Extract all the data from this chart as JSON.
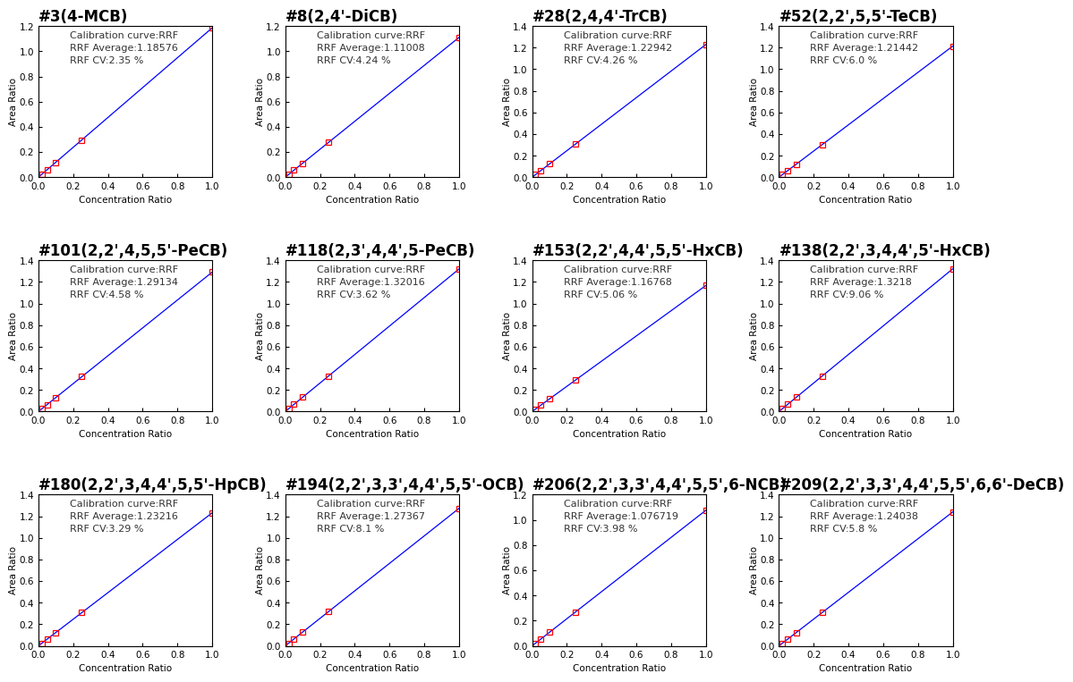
{
  "compounds": [
    {
      "title": "#3(4-MCB)",
      "rrf_avg": 1.18576,
      "rrf_cv": 2.35,
      "ylim": [
        0.0,
        1.2
      ],
      "yticks": [
        0.0,
        0.2,
        0.4,
        0.6,
        0.8,
        1.0,
        1.2
      ]
    },
    {
      "title": "#8(2,4'-DiCB)",
      "rrf_avg": 1.11008,
      "rrf_cv": 4.24,
      "ylim": [
        0.0,
        1.2
      ],
      "yticks": [
        0.0,
        0.2,
        0.4,
        0.6,
        0.8,
        1.0,
        1.2
      ]
    },
    {
      "title": "#28(2,4,4'-TrCB)",
      "rrf_avg": 1.22942,
      "rrf_cv": 4.26,
      "ylim": [
        0.0,
        1.4
      ],
      "yticks": [
        0.0,
        0.2,
        0.4,
        0.6,
        0.8,
        1.0,
        1.2,
        1.4
      ]
    },
    {
      "title": "#52(2,2',5,5'-TeCB)",
      "rrf_avg": 1.21442,
      "rrf_cv": 6.0,
      "ylim": [
        0.0,
        1.4
      ],
      "yticks": [
        0.0,
        0.2,
        0.4,
        0.6,
        0.8,
        1.0,
        1.2,
        1.4
      ]
    },
    {
      "title": "#101(2,2',4,5,5'-PeCB)",
      "rrf_avg": 1.29134,
      "rrf_cv": 4.58,
      "ylim": [
        0.0,
        1.4
      ],
      "yticks": [
        0.0,
        0.2,
        0.4,
        0.6,
        0.8,
        1.0,
        1.2,
        1.4
      ]
    },
    {
      "title": "#118(2,3',4,4',5-PeCB)",
      "rrf_avg": 1.32016,
      "rrf_cv": 3.62,
      "ylim": [
        0.0,
        1.4
      ],
      "yticks": [
        0.0,
        0.2,
        0.4,
        0.6,
        0.8,
        1.0,
        1.2,
        1.4
      ]
    },
    {
      "title": "#153(2,2',4,4',5,5'-HxCB)",
      "rrf_avg": 1.16768,
      "rrf_cv": 5.06,
      "ylim": [
        0.0,
        1.4
      ],
      "yticks": [
        0.0,
        0.2,
        0.4,
        0.6,
        0.8,
        1.0,
        1.2,
        1.4
      ]
    },
    {
      "title": "#138(2,2',3,4,4',5'-HxCB)",
      "rrf_avg": 1.3218,
      "rrf_cv": 9.06,
      "ylim": [
        0.0,
        1.4
      ],
      "yticks": [
        0.0,
        0.2,
        0.4,
        0.6,
        0.8,
        1.0,
        1.2,
        1.4
      ]
    },
    {
      "title": "#180(2,2',3,4,4',5,5'-HpCB)",
      "rrf_avg": 1.23216,
      "rrf_cv": 3.29,
      "ylim": [
        0.0,
        1.4
      ],
      "yticks": [
        0.0,
        0.2,
        0.4,
        0.6,
        0.8,
        1.0,
        1.2,
        1.4
      ]
    },
    {
      "title": "#194(2,2',3,3',4,4',5,5'-OCB)",
      "rrf_avg": 1.27367,
      "rrf_cv": 8.1,
      "ylim": [
        0.0,
        1.4
      ],
      "yticks": [
        0.0,
        0.2,
        0.4,
        0.6,
        0.8,
        1.0,
        1.2,
        1.4
      ]
    },
    {
      "title": "#206(2,2',3,3',4,4',5,5',6-NCB)",
      "rrf_avg": 1.076719,
      "rrf_cv": 3.98,
      "ylim": [
        0.0,
        1.2
      ],
      "yticks": [
        0.0,
        0.2,
        0.4,
        0.6,
        0.8,
        1.0,
        1.2
      ]
    },
    {
      "title": "#209(2,2',3,3',4,4',5,5',6,6'-DeCB)",
      "rrf_avg": 1.24038,
      "rrf_cv": 5.8,
      "ylim": [
        0.0,
        1.4
      ],
      "yticks": [
        0.0,
        0.2,
        0.4,
        0.6,
        0.8,
        1.0,
        1.2,
        1.4
      ]
    }
  ],
  "x_data": [
    0.02,
    0.05,
    0.1,
    0.25,
    1.0
  ],
  "xlabel": "Concentration Ratio",
  "ylabel": "Area Ratio",
  "legend_line": "Calibration curve:RRF",
  "xlim": [
    0.0,
    1.0
  ],
  "xticks": [
    0.0,
    0.2,
    0.4,
    0.6,
    0.8,
    1.0
  ],
  "line_color": "blue",
  "marker_color": "red",
  "title_fontsize": 12,
  "label_fontsize": 7.5,
  "tick_fontsize": 7.5,
  "annot_fontsize": 8,
  "nrows": 3,
  "ncols": 4
}
